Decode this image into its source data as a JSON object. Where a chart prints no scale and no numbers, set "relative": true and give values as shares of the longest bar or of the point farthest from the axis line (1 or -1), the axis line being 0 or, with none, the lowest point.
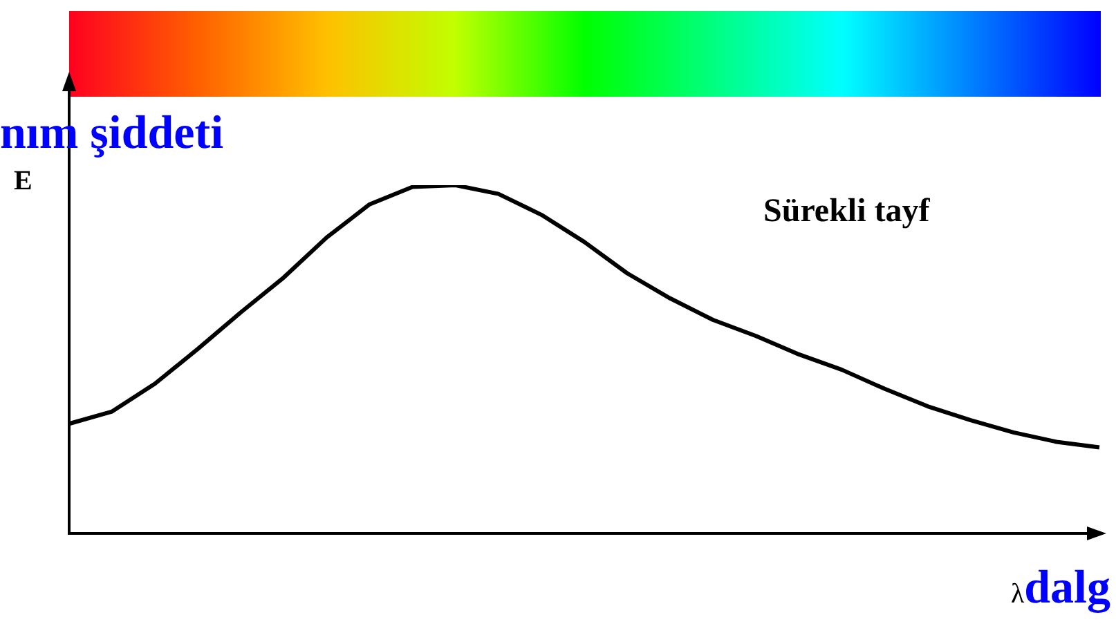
{
  "chart_data": {
    "type": "line",
    "relative": true,
    "ylabel": "nım şiddeti",
    "xlabel": "λdalg",
    "annotations": [
      "E",
      "Sürekli tayf"
    ],
    "categories": [
      null,
      null,
      null,
      null,
      null,
      null,
      null,
      null,
      null,
      null,
      null,
      null,
      null,
      null,
      null,
      null,
      null,
      null,
      null,
      null,
      null,
      null,
      null,
      null,
      null
    ],
    "series": [
      {
        "color": "#000000",
        "values": [
          0.315,
          0.35,
          0.43,
          0.53,
          0.635,
          0.735,
          0.85,
          0.945,
          0.995,
          1,
          0.975,
          0.915,
          0.837,
          0.747,
          0.675,
          0.613,
          0.567,
          0.514,
          0.47,
          0.415,
          0.365,
          0.325,
          0.29,
          0.263,
          0.247
        ]
      }
    ],
    "grid": false,
    "legend": false,
    "marker": "none",
    "line_style": "solid"
  }
}
